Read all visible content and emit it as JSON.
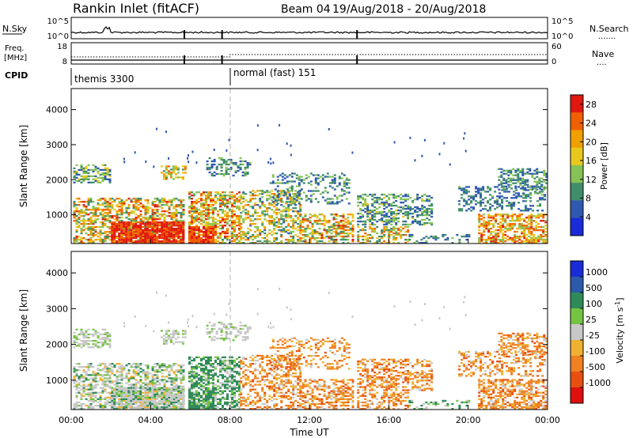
{
  "header": {
    "title": "Rankin Inlet (fitACF)",
    "beam_label": "Beam 04",
    "date_range": "19/Aug/2018 - 20/Aug/2018"
  },
  "top_panel": {
    "left_label": "N.Sky",
    "left_ticks": [
      "10^5",
      "10^0"
    ],
    "right_label": "N.Search",
    "right_ticks": [
      "10^5",
      "10^0"
    ]
  },
  "freq_panel": {
    "left_label_1": "Freq.",
    "left_label_2": "[MHz]",
    "left_ticks": [
      "18",
      "8"
    ],
    "right_label": "Nave",
    "right_ticks": [
      "60",
      "0"
    ]
  },
  "cpid": {
    "label": "CPID",
    "modes": [
      {
        "name": "themis 3300",
        "start_hour": 0
      },
      {
        "name": "normal (fast) 151",
        "start_hour": 8
      }
    ]
  },
  "colors": {
    "power": [
      "#1a2bd8",
      "#2f58b0",
      "#3f8d6a",
      "#86c256",
      "#e8c81c",
      "#f0a000",
      "#f06000",
      "#e01810"
    ],
    "velocity": [
      "#1a2bd8",
      "#2a5aa8",
      "#2f8a5a",
      "#74c442",
      "#c8c8c8",
      "#f0b030",
      "#f08020",
      "#e85010",
      "#e01010"
    ]
  },
  "chart_data": [
    {
      "type": "heatmap",
      "name": "power",
      "x_start": "00:00",
      "x_end": "00:00",
      "xlim_hours": [
        0,
        24
      ],
      "xticks": [
        "00:00",
        "04:00",
        "08:00",
        "12:00",
        "16:00",
        "20:00",
        "00:00"
      ],
      "ylabel": "Slant Range [km]",
      "ylim": [
        180,
        4600
      ],
      "yticks": [
        1000,
        2000,
        3000,
        4000
      ],
      "colorbar_label": "Power [dB]",
      "colorbar_ticks": [
        4,
        8,
        12,
        16,
        20,
        24,
        28
      ],
      "colorbar_range": [
        0,
        30
      ]
    },
    {
      "type": "heatmap",
      "name": "velocity",
      "xlim_hours": [
        0,
        24
      ],
      "xticks": [
        "00:00",
        "04:00",
        "08:00",
        "12:00",
        "16:00",
        "20:00",
        "00:00"
      ],
      "xlabel": "Time UT",
      "ylabel": "Slant Range [km]",
      "ylim": [
        180,
        4600
      ],
      "yticks": [
        1000,
        2000,
        3000,
        4000
      ],
      "colorbar_label": "Velocity [m s^-1]",
      "colorbar_ticks": [
        "1000",
        "500",
        "100",
        "25",
        "-25",
        "-100",
        "-500",
        "-1000"
      ]
    }
  ],
  "echo_regions": [
    {
      "t0": 0.1,
      "t1": 5.7,
      "r0": 180,
      "r1": 1450,
      "pw": [
        8,
        28
      ],
      "vel": "mixed_gray",
      "d": 0.55
    },
    {
      "t0": 2.0,
      "t1": 5.7,
      "r0": 180,
      "r1": 800,
      "pw": [
        24,
        30
      ],
      "vel": "mixed_gray",
      "d": 0.85
    },
    {
      "t0": 0.1,
      "t1": 2.0,
      "r0": 1900,
      "r1": 2400,
      "pw": [
        4,
        18
      ],
      "vel": "gray",
      "d": 0.45
    },
    {
      "t0": 4.5,
      "t1": 5.7,
      "r0": 2000,
      "r1": 2400,
      "pw": [
        8,
        24
      ],
      "vel": "gray",
      "d": 0.5
    },
    {
      "t0": 5.9,
      "t1": 8.5,
      "r0": 180,
      "r1": 1650,
      "pw": [
        10,
        28
      ],
      "vel": "green",
      "d": 0.6
    },
    {
      "t0": 5.9,
      "t1": 7.2,
      "r0": 180,
      "r1": 650,
      "pw": [
        22,
        30
      ],
      "vel": "green",
      "d": 0.75
    },
    {
      "t0": 6.8,
      "t1": 9.0,
      "r0": 2100,
      "r1": 2600,
      "pw": [
        4,
        14
      ],
      "vel": "gray",
      "d": 0.35
    },
    {
      "t0": 8.5,
      "t1": 11.5,
      "r0": 180,
      "r1": 1700,
      "pw": [
        6,
        24
      ],
      "vel": "orange",
      "d": 0.45
    },
    {
      "t0": 11.5,
      "t1": 14.2,
      "r0": 180,
      "r1": 1000,
      "pw": [
        8,
        28
      ],
      "vel": "orange",
      "d": 0.55
    },
    {
      "t0": 10.0,
      "t1": 14.0,
      "r0": 1300,
      "r1": 2200,
      "pw": [
        4,
        14
      ],
      "vel": "orange",
      "d": 0.3
    },
    {
      "t0": 14.4,
      "t1": 18.2,
      "r0": 700,
      "r1": 1600,
      "pw": [
        4,
        16
      ],
      "vel": "orange",
      "d": 0.45
    },
    {
      "t0": 14.4,
      "t1": 17.0,
      "r0": 180,
      "r1": 650,
      "pw": [
        8,
        26
      ],
      "vel": "orange",
      "d": 0.5
    },
    {
      "t0": 17.0,
      "t1": 20.0,
      "r0": 180,
      "r1": 450,
      "pw": [
        4,
        12
      ],
      "vel": "green",
      "d": 0.3
    },
    {
      "t0": 20.5,
      "t1": 23.9,
      "r0": 180,
      "r1": 1000,
      "pw": [
        12,
        28
      ],
      "vel": "orange",
      "d": 0.6
    },
    {
      "t0": 19.5,
      "t1": 23.9,
      "r0": 1100,
      "r1": 1800,
      "pw": [
        4,
        12
      ],
      "vel": "orange",
      "d": 0.35
    },
    {
      "t0": 21.5,
      "t1": 23.9,
      "r0": 1700,
      "r1": 2300,
      "pw": [
        4,
        14
      ],
      "vel": "orange",
      "d": 0.45
    }
  ]
}
